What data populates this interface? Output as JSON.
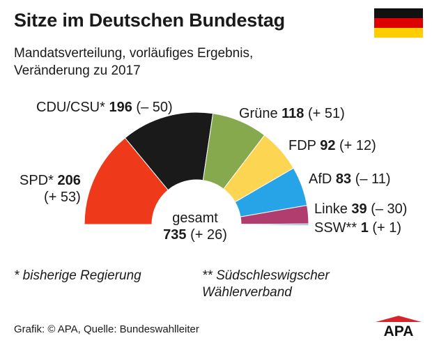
{
  "title": "Sitze im Deutschen Bundestag",
  "subtitle_line1": "Mandatsverteilung, vorläufiges Ergebnis,",
  "subtitle_line2": "Veränderung zu 2017",
  "flag_colors": [
    "#111111",
    "#dd0000",
    "#ffcc00"
  ],
  "chart_data": {
    "type": "pie",
    "subtype": "half-donut parliament seats",
    "total_label": "gesamt",
    "total": "735",
    "total_change": "(+ 26)",
    "series": [
      {
        "party": "SPD*",
        "seats": 206,
        "seats_text": "206",
        "change": "(+ 53)",
        "color": "#ee3a1b"
      },
      {
        "party": "CDU/CSU*",
        "seats": 196,
        "seats_text": "196",
        "change": "(– 50)",
        "color": "#1a1a1a"
      },
      {
        "party": "Grüne",
        "seats": 118,
        "seats_text": "118",
        "change": "(+ 51)",
        "color": "#87a94d"
      },
      {
        "party": "FDP",
        "seats": 92,
        "seats_text": "92",
        "change": "(+ 12)",
        "color": "#fcd553"
      },
      {
        "party": "AfD",
        "seats": 83,
        "seats_text": "83",
        "change": "(– 11)",
        "color": "#27a4e8"
      },
      {
        "party": "Linke",
        "seats": 39,
        "seats_text": "39",
        "change": "(– 30)",
        "color": "#b03d6e"
      },
      {
        "party": "SSW**",
        "seats": 1,
        "seats_text": "1",
        "change": "(+ 1)",
        "color": "#3d8ed0"
      }
    ]
  },
  "notes": {
    "note1": "* bisherige Regierung",
    "note2_line1": "** Südschleswigscher",
    "note2_line2": "Wählerverband"
  },
  "source": "Grafik: © APA, Quelle: Bundeswahlleiter",
  "logo_text": "APA",
  "logo_color": "#d7262b"
}
